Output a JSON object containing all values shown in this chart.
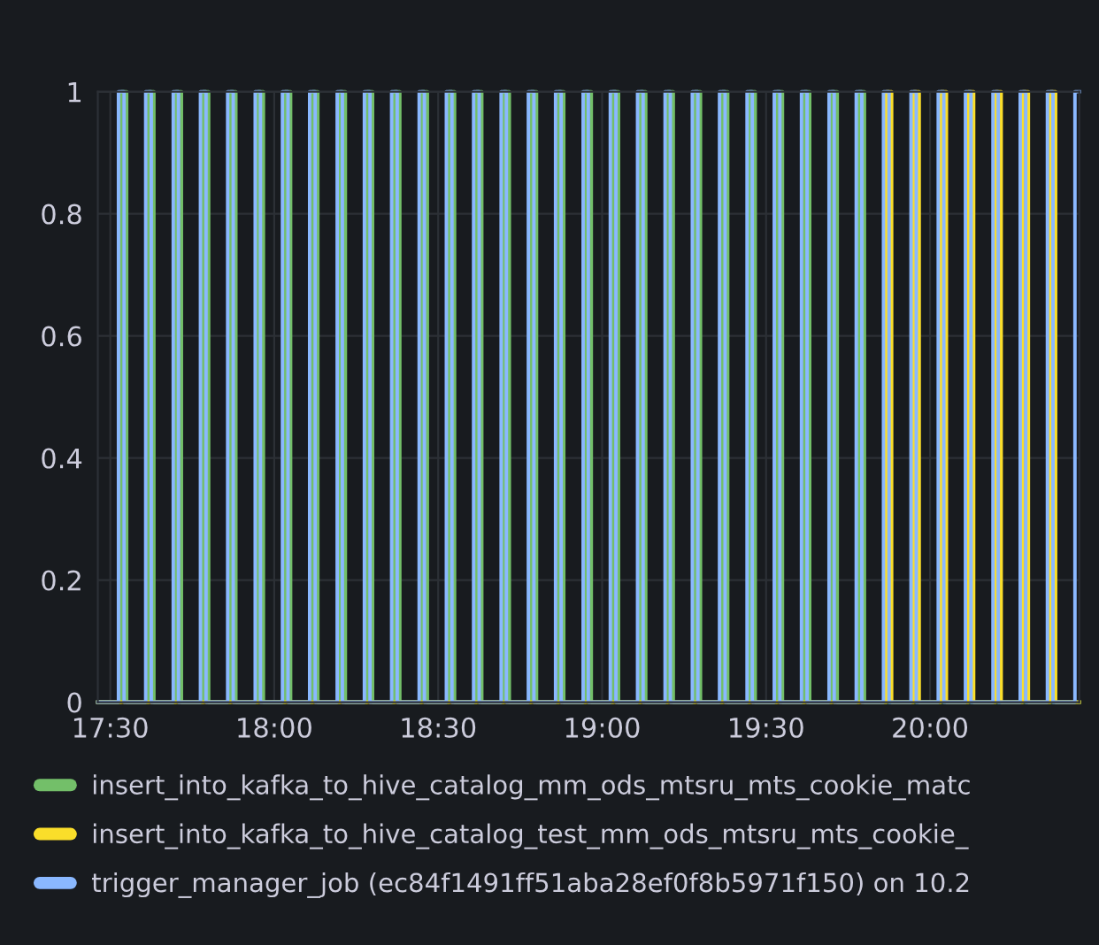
{
  "chart_data": {
    "type": "step",
    "xlim": [
      17.462,
      20.455
    ],
    "ylim": [
      0,
      1
    ],
    "xticks": [
      {
        "value": 17.5,
        "label": "17:30"
      },
      {
        "value": 18,
        "label": "18:00"
      },
      {
        "value": 18.5,
        "label": "18:30"
      },
      {
        "value": 19,
        "label": "19:00"
      },
      {
        "value": 19.5,
        "label": "19:30"
      },
      {
        "value": 20,
        "label": "20:00"
      }
    ],
    "yticks": [
      0,
      0.2,
      0.4,
      0.6,
      0.8,
      1
    ],
    "grid": true,
    "legend": "bottom",
    "marker": "none",
    "line_style": "solid",
    "series": [
      {
        "name": "insert_into_kafka_to_hive_catalog_mm_ods_mtsru_mts_cookie_matc",
        "color": "#73bf69",
        "x": [
          17.462,
          17.533,
          17.55,
          17.617,
          17.633,
          17.7,
          17.717,
          17.783,
          17.8,
          17.867,
          17.883,
          17.95,
          17.967,
          18.033,
          18.05,
          18.117,
          18.133,
          18.2,
          18.217,
          18.283,
          18.3,
          18.367,
          18.383,
          18.45,
          18.467,
          18.533,
          18.55,
          18.617,
          18.633,
          18.7,
          18.717,
          18.783,
          18.8,
          18.867,
          18.883,
          18.95,
          18.967,
          19.033,
          19.05,
          19.117,
          19.133,
          19.2,
          19.217,
          19.283,
          19.3,
          19.367,
          19.383,
          19.45,
          19.467,
          19.533,
          19.55,
          19.617,
          19.633,
          19.7,
          19.717,
          19.783,
          19.8,
          20.455
        ],
        "values": [
          0,
          1,
          0,
          1,
          0,
          1,
          0,
          1,
          0,
          1,
          0,
          1,
          0,
          1,
          0,
          1,
          0,
          1,
          0,
          1,
          0,
          1,
          0,
          1,
          0,
          1,
          0,
          1,
          0,
          1,
          0,
          1,
          0,
          1,
          0,
          1,
          0,
          1,
          0,
          1,
          0,
          1,
          0,
          1,
          0,
          1,
          0,
          1,
          0,
          1,
          0,
          1,
          0,
          1,
          0,
          1,
          0,
          0
        ]
      },
      {
        "name": "insert_into_kafka_to_hive_catalog_test_mm_ods_mtsru_mts_cookie_",
        "color": "#fade2a",
        "x": [
          17.462,
          19.867,
          19.883,
          19.95,
          19.967,
          20.033,
          20.05,
          20.117,
          20.133,
          20.2,
          20.217,
          20.283,
          20.3,
          20.367,
          20.383,
          20.455
        ],
        "values": [
          0,
          1,
          0,
          1,
          0,
          1,
          0,
          1,
          0,
          1,
          0,
          1,
          0,
          1,
          0,
          0
        ]
      },
      {
        "name": "trigger_manager_job (ec84f1491ff51aba28ef0f8b5971f150) on 10.2",
        "color": "#8ab8ff",
        "x": [
          17.462,
          17.525,
          17.542,
          17.608,
          17.625,
          17.692,
          17.708,
          17.775,
          17.792,
          17.858,
          17.875,
          17.942,
          17.958,
          18.025,
          18.042,
          18.108,
          18.125,
          18.192,
          18.208,
          18.275,
          18.292,
          18.358,
          18.375,
          18.442,
          18.458,
          18.525,
          18.542,
          18.608,
          18.625,
          18.692,
          18.708,
          18.775,
          18.792,
          18.858,
          18.875,
          18.942,
          18.958,
          19.025,
          19.042,
          19.108,
          19.125,
          19.192,
          19.208,
          19.275,
          19.292,
          19.358,
          19.375,
          19.442,
          19.458,
          19.525,
          19.542,
          19.608,
          19.625,
          19.692,
          19.708,
          19.775,
          19.792,
          19.858,
          19.875,
          19.942,
          19.958,
          20.025,
          20.042,
          20.108,
          20.125,
          20.192,
          20.208,
          20.275,
          20.292,
          20.358,
          20.375,
          20.442,
          20.455
        ],
        "values": [
          0,
          1,
          0,
          1,
          0,
          1,
          0,
          1,
          0,
          1,
          0,
          1,
          0,
          1,
          0,
          1,
          0,
          1,
          0,
          1,
          0,
          1,
          0,
          1,
          0,
          1,
          0,
          1,
          0,
          1,
          0,
          1,
          0,
          1,
          0,
          1,
          0,
          1,
          0,
          1,
          0,
          1,
          0,
          1,
          0,
          1,
          0,
          1,
          0,
          1,
          0,
          1,
          0,
          1,
          0,
          1,
          0,
          1,
          0,
          1,
          0,
          1,
          0,
          1,
          0,
          1,
          0,
          1,
          0,
          1,
          0,
          1,
          1
        ]
      }
    ]
  }
}
